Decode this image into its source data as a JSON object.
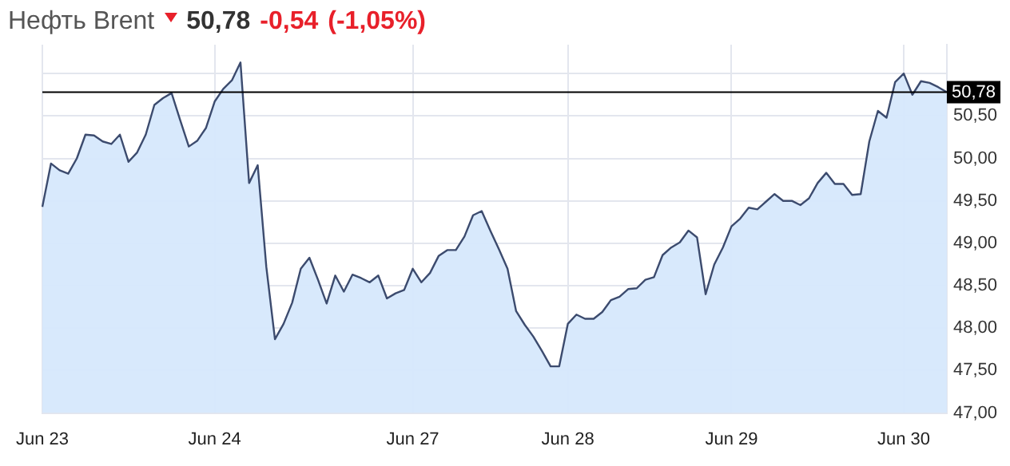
{
  "chart_data": {
    "type": "area",
    "title": "Нефть Brent",
    "annotations": [
      "50,78",
      "-0,54",
      "(-1,05%)"
    ],
    "categories": [
      "Jun 23",
      null,
      null,
      null,
      null,
      null,
      null,
      null,
      null,
      null,
      null,
      null,
      null,
      null,
      null,
      null,
      null,
      null,
      null,
      null,
      "Jun 24",
      null,
      null,
      null,
      null,
      null,
      null,
      null,
      null,
      null,
      null,
      null,
      null,
      null,
      null,
      null,
      null,
      null,
      null,
      null,
      null,
      null,
      null,
      "Jun 27",
      null,
      null,
      null,
      null,
      null,
      null,
      null,
      null,
      null,
      null,
      null,
      null,
      null,
      null,
      null,
      null,
      null,
      "Jun 28",
      null,
      null,
      null,
      null,
      null,
      null,
      null,
      null,
      null,
      null,
      null,
      null,
      null,
      null,
      null,
      null,
      null,
      null,
      "Jun 29",
      null,
      null,
      null,
      null,
      null,
      null,
      null,
      null,
      null,
      null,
      null,
      null,
      null,
      null,
      null,
      null,
      null,
      null,
      null,
      "Jun 30",
      null,
      null,
      null,
      null,
      null
    ],
    "series": [
      {
        "color": "#3c4b6e",
        "values": [
          49.43,
          49.94,
          49.86,
          49.82,
          50.0,
          50.28,
          50.27,
          50.2,
          50.17,
          50.28,
          49.96,
          50.07,
          50.28,
          50.63,
          50.71,
          50.77,
          50.45,
          50.14,
          50.21,
          50.36,
          50.67,
          50.82,
          50.92,
          51.13,
          49.71,
          49.92,
          48.72,
          47.87,
          48.05,
          48.3,
          48.7,
          48.83,
          48.57,
          48.29,
          48.62,
          48.43,
          48.63,
          48.59,
          48.54,
          48.62,
          48.35,
          48.41,
          48.45,
          48.7,
          48.54,
          48.65,
          48.85,
          48.92,
          48.92,
          49.08,
          49.33,
          49.38,
          49.15,
          48.93,
          48.7,
          48.2,
          48.04,
          47.9,
          47.73,
          47.55,
          47.55,
          48.05,
          48.16,
          48.11,
          48.11,
          48.19,
          48.33,
          48.37,
          48.46,
          48.47,
          48.57,
          48.6,
          48.86,
          48.95,
          49.01,
          49.15,
          49.07,
          48.4,
          48.75,
          48.95,
          49.2,
          49.29,
          49.42,
          49.4,
          49.49,
          49.58,
          49.5,
          49.5,
          49.45,
          49.53,
          49.71,
          49.83,
          49.7,
          49.7,
          49.57,
          49.58,
          50.2,
          50.56,
          50.48,
          50.9,
          51.0,
          50.75,
          50.91,
          50.89,
          50.84,
          50.78
        ]
      }
    ],
    "ylim": [
      47,
      51.34
    ],
    "yticks": [
      {
        "value": 47,
        "label": "47,00"
      },
      {
        "value": 47.5,
        "label": "47,50"
      },
      {
        "value": 48,
        "label": "48,00"
      },
      {
        "value": 48.5,
        "label": "48,50"
      },
      {
        "value": 49,
        "label": "49,00"
      },
      {
        "value": 49.5,
        "label": "49,50"
      },
      {
        "value": 50,
        "label": "50,00"
      },
      {
        "value": 50.5,
        "label": "50,50"
      },
      {
        "value": 51,
        "label": null
      }
    ],
    "ref_lines": [
      {
        "axis": "y",
        "value": 50.78,
        "label": "50,78",
        "color": "#000000"
      }
    ],
    "grid": true,
    "legend": false,
    "marker": "none",
    "line_style": "solid"
  }
}
